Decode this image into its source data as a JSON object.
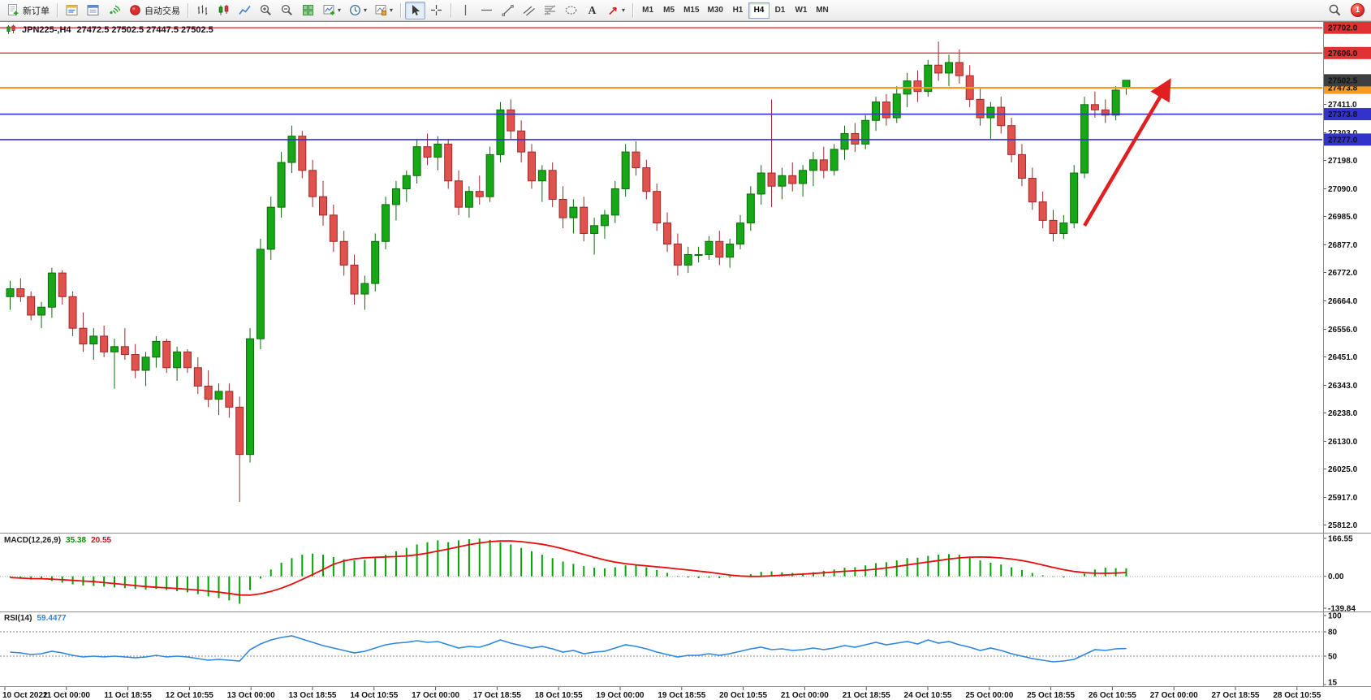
{
  "toolbar": {
    "new_order_label": "新订单",
    "autotrading_label": "自动交易",
    "timeframes": [
      {
        "label": "M1",
        "selected": false
      },
      {
        "label": "M5",
        "selected": false
      },
      {
        "label": "M15",
        "selected": false
      },
      {
        "label": "M30",
        "selected": false
      },
      {
        "label": "H1",
        "selected": false
      },
      {
        "label": "H4",
        "selected": true
      },
      {
        "label": "D1",
        "selected": false
      },
      {
        "label": "W1",
        "selected": false
      },
      {
        "label": "MN",
        "selected": false
      }
    ],
    "notification_count": "1"
  },
  "chart": {
    "title_symbol": "JPN225-,H4",
    "title_ohlc": "27472.5 27502.5 27447.5 27502.5"
  },
  "chart_data": {
    "type": "candlestick",
    "symbol": "JPN225-",
    "timeframe": "H4",
    "ohlc_current": {
      "open": 27472.5,
      "high": 27502.5,
      "low": 27447.5,
      "close": 27502.5
    },
    "price_axis": {
      "min": 25795,
      "max": 27715,
      "grid_labels": [
        27411.0,
        27303.0,
        27198.0,
        27090.0,
        26985.0,
        26877.0,
        26772.0,
        26664.0,
        26556.0,
        26451.0,
        26343.0,
        26238.0,
        26130.0,
        26025.0,
        25917.0,
        25812.0
      ]
    },
    "time_labels": [
      "10 Oct 2022",
      "11 Oct 00:00",
      "11 Oct 18:55",
      "12 Oct 10:55",
      "13 Oct 00:00",
      "13 Oct 18:55",
      "14 Oct 10:55",
      "17 Oct 00:00",
      "17 Oct 18:55",
      "18 Oct 10:55",
      "19 Oct 00:00",
      "19 Oct 18:55",
      "20 Oct 10:55",
      "21 Oct 00:00",
      "21 Oct 18:55",
      "24 Oct 10:55",
      "25 Oct 00:00",
      "25 Oct 18:55",
      "26 Oct 10:55",
      "27 Oct 00:00",
      "27 Oct 18:55",
      "28 Oct 10:55"
    ],
    "hlines": [
      {
        "price": 27702.0,
        "color": "#e03232",
        "width": 1.4,
        "badge": "27702.0"
      },
      {
        "price": 27606.0,
        "color": "#e03232",
        "width": 1.4,
        "badge": "27606.0"
      },
      {
        "price": 27473.8,
        "color": "#f59a23",
        "width": 2.2,
        "badge": "27473.8"
      },
      {
        "price": 27373.8,
        "color": "#3333cc",
        "width": 1.6,
        "badge": "27373.8"
      },
      {
        "price": 27277.0,
        "color": "#3333cc",
        "width": 1.6,
        "badge": "27277.0"
      }
    ],
    "current_price": {
      "value": 27502.5,
      "badge": "27502.5",
      "badge_color": "#3c4043"
    },
    "colors": {
      "up_fill": "#17a817",
      "up_stroke": "#0c6b0c",
      "down_fill": "#e0524e",
      "down_stroke": "#9c2a2a",
      "macd_hist": "#00a600",
      "macd_signal": "#e80c0c",
      "rsi_line": "#2e86e0",
      "arrow": "#e02020"
    },
    "candles": [
      [
        26680,
        26740,
        26630,
        26710
      ],
      [
        26710,
        26750,
        26660,
        26680
      ],
      [
        26680,
        26700,
        26590,
        26610
      ],
      [
        26610,
        26660,
        26560,
        26640
      ],
      [
        26640,
        26790,
        26600,
        26770
      ],
      [
        26770,
        26780,
        26650,
        26680
      ],
      [
        26680,
        26700,
        26530,
        26560
      ],
      [
        26560,
        26620,
        26470,
        26500
      ],
      [
        26500,
        26560,
        26440,
        26530
      ],
      [
        26530,
        26570,
        26450,
        26470
      ],
      [
        26470,
        26520,
        26330,
        26490
      ],
      [
        26490,
        26560,
        26440,
        26460
      ],
      [
        26460,
        26500,
        26370,
        26400
      ],
      [
        26400,
        26470,
        26340,
        26450
      ],
      [
        26450,
        26530,
        26410,
        26510
      ],
      [
        26510,
        26520,
        26390,
        26410
      ],
      [
        26410,
        26490,
        26360,
        26470
      ],
      [
        26470,
        26480,
        26390,
        26410
      ],
      [
        26410,
        26450,
        26310,
        26340
      ],
      [
        26340,
        26400,
        26260,
        26290
      ],
      [
        26290,
        26350,
        26230,
        26320
      ],
      [
        26320,
        26350,
        26220,
        26260
      ],
      [
        26260,
        26300,
        25900,
        26080
      ],
      [
        26080,
        26560,
        26050,
        26520
      ],
      [
        26520,
        26900,
        26480,
        26860
      ],
      [
        26860,
        27060,
        26820,
        27020
      ],
      [
        27020,
        27230,
        26980,
        27190
      ],
      [
        27190,
        27330,
        27150,
        27290
      ],
      [
        27290,
        27310,
        27130,
        27160
      ],
      [
        27160,
        27200,
        27020,
        27060
      ],
      [
        27060,
        27120,
        26950,
        26990
      ],
      [
        26990,
        27030,
        26850,
        26890
      ],
      [
        26890,
        26930,
        26760,
        26800
      ],
      [
        26800,
        26840,
        26650,
        26690
      ],
      [
        26690,
        26760,
        26630,
        26730
      ],
      [
        26730,
        26920,
        26700,
        26890
      ],
      [
        26890,
        27060,
        26860,
        27030
      ],
      [
        27030,
        27120,
        26970,
        27090
      ],
      [
        27090,
        27160,
        27040,
        27140
      ],
      [
        27140,
        27280,
        27110,
        27250
      ],
      [
        27250,
        27300,
        27180,
        27210
      ],
      [
        27210,
        27290,
        27160,
        27260
      ],
      [
        27260,
        27280,
        27090,
        27120
      ],
      [
        27120,
        27160,
        26990,
        27020
      ],
      [
        27020,
        27100,
        26980,
        27080
      ],
      [
        27080,
        27140,
        27030,
        27060
      ],
      [
        27060,
        27250,
        27040,
        27220
      ],
      [
        27220,
        27420,
        27190,
        27390
      ],
      [
        27390,
        27430,
        27280,
        27310
      ],
      [
        27310,
        27350,
        27190,
        27230
      ],
      [
        27230,
        27260,
        27090,
        27120
      ],
      [
        27120,
        27180,
        27040,
        27160
      ],
      [
        27160,
        27190,
        27020,
        27050
      ],
      [
        27050,
        27100,
        26940,
        26980
      ],
      [
        26980,
        27050,
        26920,
        27020
      ],
      [
        27020,
        27060,
        26890,
        26920
      ],
      [
        26920,
        26980,
        26840,
        26950
      ],
      [
        26950,
        27010,
        26900,
        26990
      ],
      [
        26990,
        27120,
        26960,
        27090
      ],
      [
        27090,
        27260,
        27060,
        27230
      ],
      [
        27230,
        27270,
        27140,
        27170
      ],
      [
        27170,
        27200,
        27050,
        27080
      ],
      [
        27080,
        27110,
        26930,
        26960
      ],
      [
        26960,
        27000,
        26850,
        26880
      ],
      [
        26880,
        26920,
        26760,
        26800
      ],
      [
        26800,
        26870,
        26770,
        26840
      ],
      [
        26840,
        26870,
        26810,
        26840
      ],
      [
        26840,
        26910,
        26820,
        26890
      ],
      [
        26890,
        26930,
        26800,
        26830
      ],
      [
        26830,
        26900,
        26790,
        26880
      ],
      [
        26880,
        26990,
        26860,
        26960
      ],
      [
        26960,
        27100,
        26930,
        27070
      ],
      [
        27070,
        27180,
        27030,
        27150
      ],
      [
        27150,
        27430,
        27020,
        27100
      ],
      [
        27100,
        27170,
        27050,
        27140
      ],
      [
        27140,
        27190,
        27080,
        27110
      ],
      [
        27110,
        27180,
        27060,
        27160
      ],
      [
        27160,
        27230,
        27100,
        27200
      ],
      [
        27200,
        27250,
        27130,
        27160
      ],
      [
        27160,
        27260,
        27140,
        27240
      ],
      [
        27240,
        27330,
        27200,
        27300
      ],
      [
        27300,
        27340,
        27230,
        27260
      ],
      [
        27260,
        27370,
        27240,
        27350
      ],
      [
        27350,
        27440,
        27310,
        27420
      ],
      [
        27420,
        27450,
        27330,
        27360
      ],
      [
        27360,
        27480,
        27340,
        27450
      ],
      [
        27450,
        27530,
        27400,
        27500
      ],
      [
        27500,
        27540,
        27420,
        27460
      ],
      [
        27460,
        27580,
        27440,
        27560
      ],
      [
        27560,
        27650,
        27500,
        27530
      ],
      [
        27530,
        27600,
        27480,
        27570
      ],
      [
        27570,
        27620,
        27490,
        27520
      ],
      [
        27520,
        27560,
        27400,
        27430
      ],
      [
        27430,
        27470,
        27330,
        27360
      ],
      [
        27360,
        27420,
        27280,
        27400
      ],
      [
        27400,
        27440,
        27300,
        27330
      ],
      [
        27330,
        27360,
        27190,
        27220
      ],
      [
        27220,
        27260,
        27100,
        27130
      ],
      [
        27130,
        27170,
        27010,
        27040
      ],
      [
        27040,
        27080,
        26940,
        26970
      ],
      [
        26970,
        27010,
        26890,
        26920
      ],
      [
        26920,
        26990,
        26900,
        26960
      ],
      [
        26960,
        27180,
        26940,
        27150
      ],
      [
        27150,
        27440,
        27130,
        27410
      ],
      [
        27410,
        27460,
        27360,
        27390
      ],
      [
        27390,
        27430,
        27340,
        27370
      ],
      [
        27370,
        27480,
        27350,
        27465
      ],
      [
        27472.5,
        27502.5,
        27447.5,
        27502.5
      ]
    ],
    "annotation_arrow": {
      "color": "#e02020",
      "from": {
        "candle": 103,
        "price": 26950
      },
      "to": {
        "candle": 111,
        "price": 27490
      }
    },
    "indicators": {
      "macd": {
        "title": "MACD(12,26,9)",
        "main_value": "35.38",
        "signal_value": "20.55",
        "scale_max": 166.55,
        "scale_min": -139.84,
        "scale_labels": [
          "166.55",
          "0.00",
          "-139.84"
        ],
        "histogram": [
          -5,
          -10,
          -14,
          -12,
          -20,
          -28,
          -35,
          -40,
          -42,
          -45,
          -48,
          -52,
          -55,
          -58,
          -55,
          -60,
          -65,
          -70,
          -78,
          -88,
          -95,
          -105,
          -120,
          -60,
          -10,
          30,
          60,
          80,
          95,
          100,
          95,
          85,
          75,
          70,
          72,
          80,
          95,
          110,
          125,
          140,
          150,
          158,
          150,
          158,
          163,
          166,
          160,
          150,
          140,
          125,
          110,
          95,
          80,
          65,
          55,
          45,
          38,
          35,
          40,
          48,
          48,
          40,
          28,
          15,
          2,
          -5,
          -8,
          -6,
          -8,
          -5,
          2,
          10,
          20,
          22,
          18,
          15,
          14,
          18,
          24,
          30,
          38,
          40,
          48,
          58,
          62,
          70,
          80,
          82,
          90,
          95,
          98,
          95,
          85,
          70,
          60,
          52,
          40,
          28,
          15,
          5,
          -2,
          -5,
          0,
          12,
          30,
          38,
          36,
          35.38
        ]
      },
      "rsi": {
        "title": "RSI(14)",
        "value": "59.4477",
        "scale_labels": [
          100,
          80,
          50,
          15
        ],
        "levels": [
          80,
          50
        ],
        "values": [
          55,
          54,
          52,
          53,
          56,
          54,
          51,
          49,
          50,
          49,
          50,
          49,
          48,
          49,
          51,
          49,
          50,
          49,
          47,
          45,
          46,
          45,
          44,
          58,
          65,
          70,
          73,
          75,
          71,
          67,
          63,
          60,
          57,
          54,
          56,
          60,
          64,
          66,
          67,
          69,
          67,
          68,
          64,
          60,
          62,
          61,
          65,
          70,
          66,
          63,
          60,
          62,
          59,
          55,
          57,
          53,
          55,
          56,
          60,
          64,
          62,
          59,
          55,
          52,
          49,
          51,
          51,
          53,
          51,
          53,
          56,
          59,
          61,
          58,
          59,
          57,
          58,
          60,
          58,
          60,
          63,
          61,
          64,
          67,
          64,
          66,
          68,
          65,
          70,
          66,
          68,
          64,
          61,
          57,
          60,
          57,
          53,
          50,
          47,
          45,
          43,
          44,
          46,
          52,
          58,
          57,
          59,
          59.4
        ]
      }
    }
  }
}
